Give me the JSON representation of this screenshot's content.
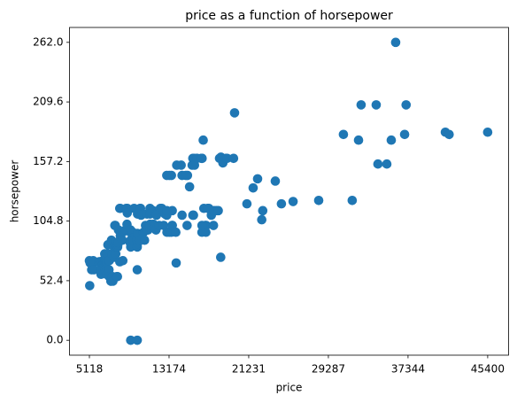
{
  "chart_data": {
    "type": "scatter",
    "title": "price as a function of horsepower",
    "xlabel": "price",
    "ylabel": "horsepower",
    "color": "#1f77b4",
    "xlim": [
      3104,
      47514
    ],
    "ylim": [
      -13.1,
      275.1
    ],
    "xticks": [
      5118,
      {
        "value": 13174.4,
        "label": "13174"
      },
      {
        "value": 21230.8,
        "label": "21231"
      },
      {
        "value": 29287.2,
        "label": "29287"
      },
      {
        "value": 37343.6,
        "label": "37344"
      },
      45400
    ],
    "yticks": [
      {
        "value": 0,
        "label": "0.0"
      },
      52.4,
      104.8,
      157.2,
      209.6,
      {
        "value": 262,
        "label": "262.0"
      }
    ],
    "x": [
      5118,
      5151,
      5195,
      5348,
      5389,
      5499,
      5572,
      5572,
      6095,
      6189,
      6229,
      6295,
      6338,
      6377,
      6479,
      6488,
      6529,
      6575,
      6649,
      6669,
      6692,
      6695,
      6785,
      6795,
      6849,
      6855,
      6918,
      6938,
      6989,
      7053,
      7099,
      7126,
      7129,
      7295,
      7299,
      7349,
      7395,
      7463,
      7499,
      7603,
      7609,
      7689,
      7738,
      7775,
      7788,
      7799,
      7895,
      7898,
      7957,
      7975,
      7995,
      8013,
      8058,
      8189,
      8195,
      8238,
      8249,
      8358,
      8449,
      8495,
      8499,
      9295,
      8778,
      8845,
      8921,
      8948,
      8949,
      9959,
      9233,
      9258,
      9279,
      9295,
      9298,
      9495,
      9538,
      9549,
      9639,
      9895,
      9959,
      9960,
      9980,
      9988,
      9989,
      10198,
      10245,
      10295,
      10345,
      10595,
      10698,
      10795,
      10898,
      10945,
      11048,
      11199,
      11245,
      11248,
      11259,
      11549,
      11595,
      11694,
      11845,
      11850,
      11900,
      12170,
      12290,
      12440,
      12629,
      12764,
      12940,
      12945,
      12964,
      13200,
      13415,
      13495,
      13499,
      13894,
      12945,
      13200,
      13415,
      13950,
      14399,
      14489,
      14869,
      15040,
      15250,
      15510,
      15580,
      15690,
      15750,
      15985,
      15998,
      16430,
      16500,
      16515,
      16630,
      16695,
      16845,
      16900,
      16925,
      17075,
      17199,
      17450,
      17669,
      17710,
      17950,
      18150,
      18280,
      18344,
      18399,
      18420,
      18620,
      18920,
      19045,
      19699,
      15645,
      15580,
      14489,
      16500,
      16503,
      14999,
      13499,
      12945,
      13860,
      19800,
      36094,
      32600,
      34125,
      37150,
      30810,
      32340,
      34300,
      35200,
      35650,
      37000,
      41120,
      41500,
      45400,
      31700,
      28310,
      25720,
      24540,
      23920,
      22130,
      21680,
      21050,
      22650,
      22550
    ],
    "values": [
      70,
      48,
      68,
      62,
      68,
      70,
      68,
      62,
      69,
      69,
      62,
      58,
      62,
      69,
      68,
      70,
      69,
      68,
      69,
      76,
      70,
      62,
      70,
      60,
      58,
      69,
      73,
      76,
      84,
      70,
      62,
      56,
      70,
      52,
      52,
      88,
      76,
      56,
      52,
      73,
      82,
      101,
      101,
      86,
      76,
      82,
      56,
      82,
      56,
      82,
      84,
      86,
      97,
      116,
      69,
      116,
      92,
      95,
      88,
      95,
      70,
      0,
      97,
      116,
      102,
      116,
      112,
      0,
      86,
      95,
      97,
      88,
      82,
      95,
      90,
      88,
      116,
      88,
      62,
      82,
      94,
      111,
      85,
      88,
      116,
      116,
      110,
      95,
      88,
      101,
      97,
      111,
      97,
      101,
      116,
      111,
      102,
      114,
      102,
      100,
      111,
      97,
      110,
      101,
      116,
      116,
      101,
      111,
      110,
      111,
      95,
      95,
      95,
      101,
      101,
      68,
      145,
      145,
      145,
      154,
      154,
      145,
      145,
      145,
      135,
      154,
      160,
      160,
      154,
      160,
      160,
      160,
      160,
      160,
      176,
      116,
      101,
      95,
      101,
      116,
      116,
      110,
      101,
      114,
      114,
      114,
      160,
      160,
      73,
      161,
      156,
      160,
      160,
      160,
      110,
      110,
      110,
      95,
      101,
      101,
      114,
      114,
      95,
      200,
      262,
      207,
      207,
      207,
      181,
      176,
      155,
      155,
      176,
      181,
      183,
      181,
      183,
      123,
      123,
      122,
      120,
      140,
      142,
      134,
      120,
      114,
      106
    ]
  }
}
